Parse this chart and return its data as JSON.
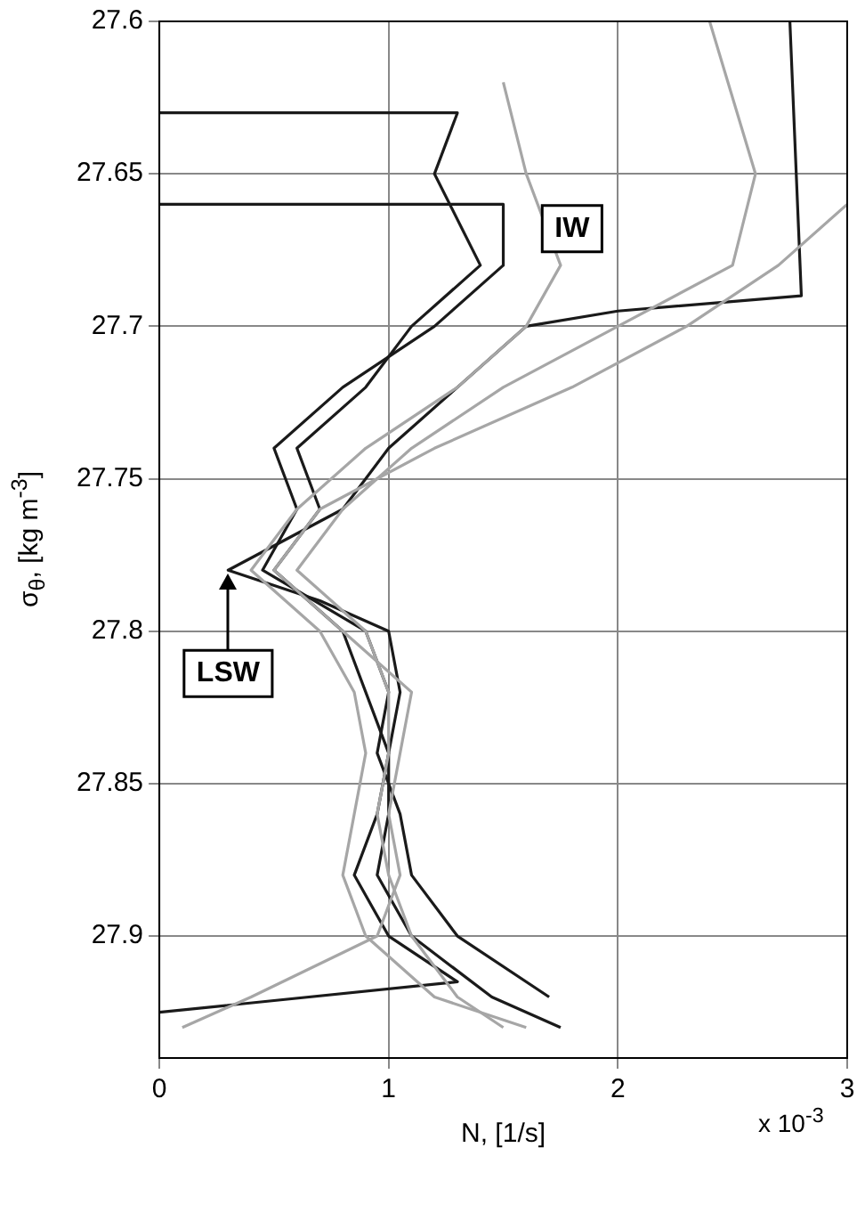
{
  "chart_data": {
    "type": "line",
    "xlabel": "N, [1/s]",
    "ylabel": "σ$_{θ}$, [kg m$^{-3}$]",
    "xlim": [
      0,
      3
    ],
    "xticks": [
      0,
      1,
      2,
      3
    ],
    "ylim": [
      27.94,
      27.6
    ],
    "yticks": [
      27.6,
      27.65,
      27.7,
      27.75,
      27.8,
      27.85,
      27.9
    ],
    "grid": true,
    "legend": false,
    "marker": "none",
    "line_style": "solid",
    "annotations": [
      "x 10$^{-3}$",
      "IW",
      {
        "text": "LSW",
        "x": 0.3,
        "y": 27.78
      }
    ],
    "series": [
      {
        "color": "#a6a6a6",
        "x": [
          2.4,
          2.6,
          2.5,
          2.0,
          1.5,
          1.1,
          0.8,
          0.6,
          0.9,
          1.0,
          1.0,
          0.95,
          1.0,
          1.1,
          1.3,
          1.5
        ],
        "values": [
          27.6,
          27.65,
          27.68,
          27.7,
          27.72,
          27.74,
          27.76,
          27.78,
          27.8,
          27.82,
          27.84,
          27.86,
          27.88,
          27.9,
          27.92,
          27.93
        ]
      },
      {
        "color": "#a6a6a6",
        "x": [
          1.5,
          1.6,
          1.75,
          1.6,
          1.3,
          0.9,
          0.6,
          0.4,
          0.7,
          0.85,
          0.9,
          0.85,
          0.8,
          0.9,
          1.2,
          1.6
        ],
        "values": [
          27.62,
          27.65,
          27.68,
          27.7,
          27.72,
          27.74,
          27.76,
          27.78,
          27.8,
          27.82,
          27.84,
          27.86,
          27.88,
          27.9,
          27.92,
          27.93
        ]
      },
      {
        "color": "#a6a6a6",
        "x": [
          3.0,
          2.7,
          2.3,
          1.8,
          1.2,
          0.7,
          0.5,
          0.8,
          1.1,
          1.05,
          1.0,
          1.05,
          0.95,
          0.4,
          0.1
        ],
        "values": [
          27.66,
          27.68,
          27.7,
          27.72,
          27.74,
          27.76,
          27.78,
          27.8,
          27.82,
          27.84,
          27.86,
          27.88,
          27.9,
          27.92,
          27.93
        ]
      },
      {
        "color": "#1a1a1a",
        "x": [
          2.75,
          2.8,
          2.0,
          1.6,
          1.3,
          1.0,
          0.8,
          0.3,
          0.7,
          1.0,
          1.05,
          1.0,
          1.0,
          0.95,
          1.1,
          1.45,
          1.75
        ],
        "values": [
          27.6,
          27.69,
          27.695,
          27.7,
          27.72,
          27.74,
          27.76,
          27.78,
          27.79,
          27.8,
          27.82,
          27.84,
          27.86,
          27.88,
          27.9,
          27.92,
          27.93
        ]
      },
      {
        "color": "#1a1a1a",
        "x": [
          0.0,
          1.3,
          1.2,
          1.4,
          1.1,
          0.9,
          0.6,
          0.7,
          0.5,
          0.8,
          0.9,
          1.0,
          0.95,
          0.85,
          1.0,
          1.3,
          0.0
        ],
        "values": [
          27.63,
          27.63,
          27.65,
          27.68,
          27.7,
          27.72,
          27.74,
          27.76,
          27.78,
          27.8,
          27.82,
          27.84,
          27.86,
          27.88,
          27.9,
          27.915,
          27.925
        ]
      },
      {
        "color": "#1a1a1a",
        "x": [
          0.0,
          1.5,
          1.5,
          1.2,
          0.8,
          0.5,
          0.6,
          0.45,
          0.9,
          1.0,
          0.95,
          1.05,
          1.1,
          1.3,
          1.7
        ],
        "values": [
          27.66,
          27.66,
          27.68,
          27.7,
          27.72,
          27.74,
          27.76,
          27.78,
          27.8,
          27.82,
          27.84,
          27.86,
          27.88,
          27.9,
          27.92
        ]
      }
    ]
  }
}
